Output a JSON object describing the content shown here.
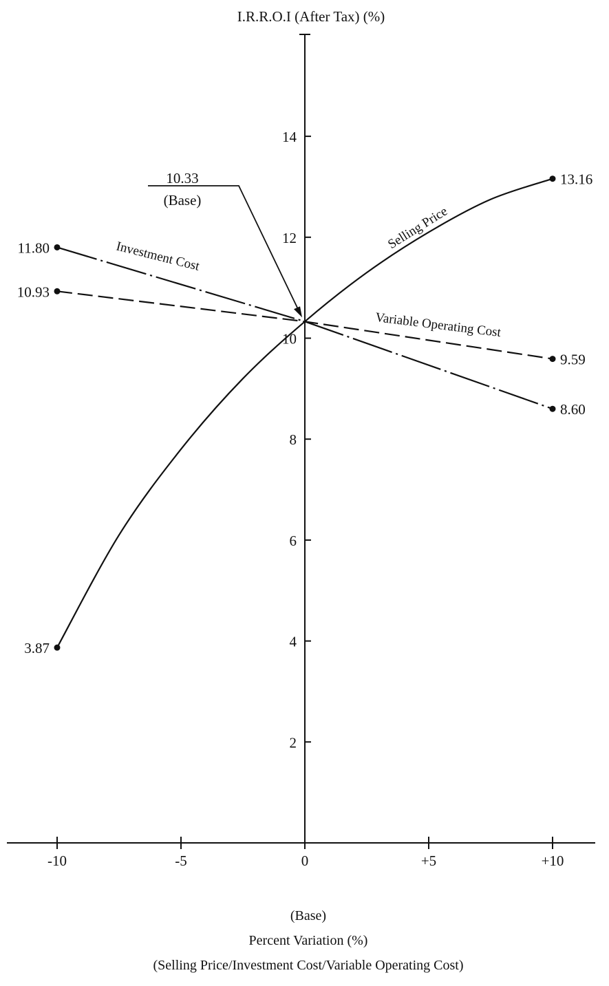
{
  "chart_data": {
    "type": "line",
    "title": "I.R.R.O.I (After Tax) (%)",
    "xlabel_lines": [
      "(Base)",
      "Percent Variation (%)",
      "(Selling Price/Investment Cost/Variable Operating Cost)"
    ],
    "xlim": [
      -12,
      12
    ],
    "ylim": [
      0,
      16
    ],
    "x_ticks": [
      -10,
      -5,
      0,
      5,
      10
    ],
    "x_tick_labels": [
      "-10",
      "-5",
      "0",
      "+5",
      "+10"
    ],
    "y_ticks": [
      2,
      4,
      6,
      8,
      10,
      12,
      14
    ],
    "y_tick_labels": [
      "2",
      "4",
      "6",
      "8",
      "10",
      "12",
      "14"
    ],
    "grid": false,
    "base_annotation": {
      "value_label": "10.33",
      "note": "(Base)",
      "x": 0,
      "y": 10.33
    },
    "series": [
      {
        "name": "Selling Price",
        "style": "solid",
        "x": [
          -10,
          -7.5,
          -5,
          -2.5,
          0,
          2.5,
          5,
          7.5,
          10
        ],
        "y": [
          3.87,
          6.1,
          7.8,
          9.2,
          10.33,
          11.3,
          12.1,
          12.75,
          13.16
        ],
        "end_labels": [
          "3.87",
          "13.16"
        ]
      },
      {
        "name": "Investment Cost",
        "style": "dash-dot",
        "x": [
          -10,
          0,
          10
        ],
        "y": [
          11.8,
          10.33,
          8.6
        ],
        "end_labels": [
          "11.80",
          "8.60"
        ]
      },
      {
        "name": "Variable Operating Cost",
        "style": "dashed",
        "x": [
          -10,
          0,
          10
        ],
        "y": [
          10.93,
          10.33,
          9.59
        ],
        "end_labels": [
          "10.93",
          "9.59"
        ]
      }
    ]
  }
}
